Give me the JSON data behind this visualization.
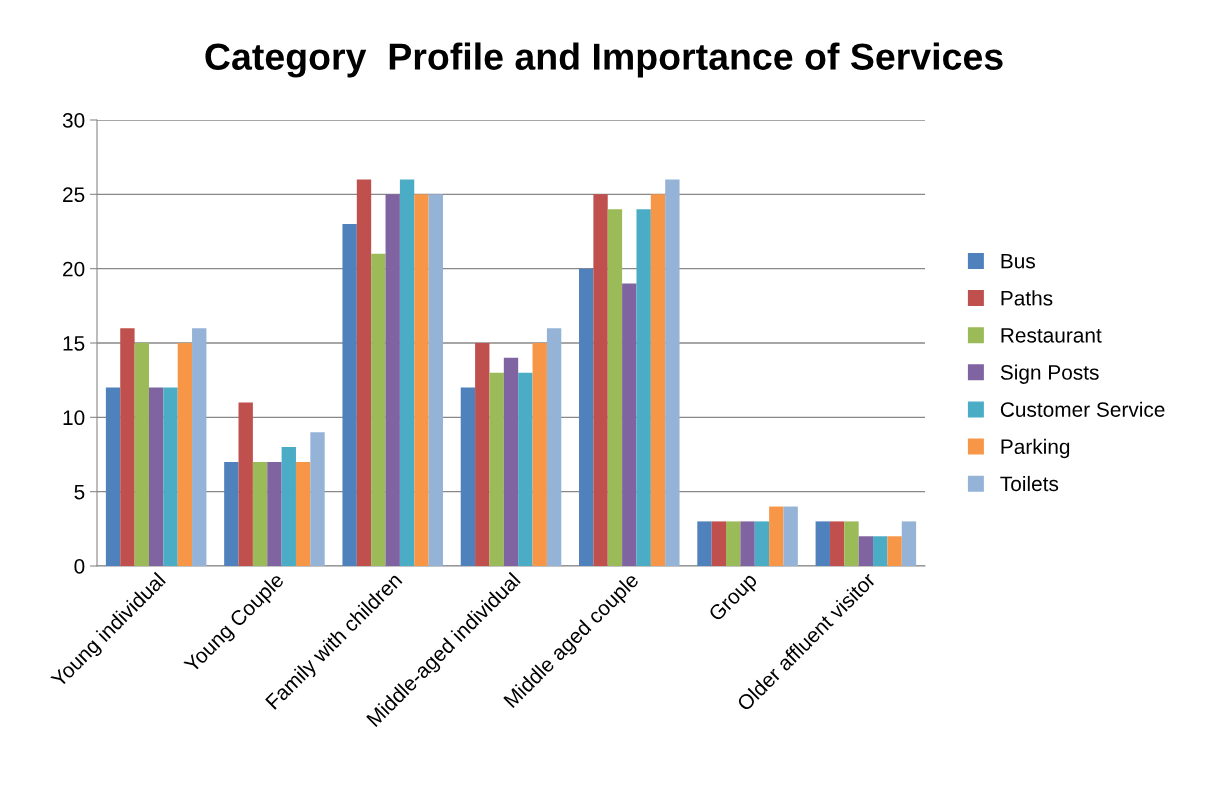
{
  "chart_data": {
    "type": "bar",
    "title": "Category  Profile and Importance of Services",
    "categories": [
      "Young individual",
      "Young Couple",
      "Family with children",
      "Middle-aged individual",
      "Middle aged couple",
      "Group",
      "Older affluent visitor"
    ],
    "series": [
      {
        "name": "Bus",
        "color": "#4f81bd",
        "values": [
          12,
          7,
          23,
          12,
          20,
          3,
          3
        ]
      },
      {
        "name": "Paths",
        "color": "#c0504d",
        "values": [
          16,
          11,
          26,
          15,
          25,
          3,
          3
        ]
      },
      {
        "name": "Restaurant",
        "color": "#9bbb59",
        "values": [
          15,
          7,
          21,
          13,
          24,
          3,
          3
        ]
      },
      {
        "name": "Sign Posts",
        "color": "#8064a2",
        "values": [
          12,
          7,
          25,
          14,
          19,
          3,
          2
        ]
      },
      {
        "name": "Customer Service",
        "color": "#4bacc6",
        "values": [
          12,
          8,
          26,
          13,
          24,
          3,
          2
        ]
      },
      {
        "name": "Parking",
        "color": "#f79646",
        "values": [
          15,
          7,
          25,
          15,
          25,
          4,
          2
        ]
      },
      {
        "name": "Toilets",
        "color": "#95b3d7",
        "values": [
          16,
          9,
          25,
          16,
          26,
          4,
          3
        ]
      }
    ],
    "ylim": [
      0,
      30
    ],
    "yticks": [
      0,
      5,
      10,
      15,
      20,
      25,
      30
    ],
    "grid": "y",
    "legend": "right"
  }
}
